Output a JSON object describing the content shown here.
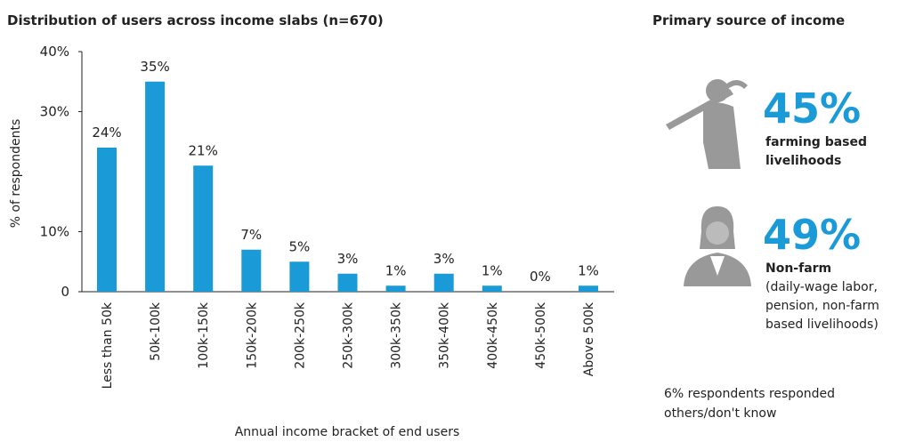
{
  "chart_data": {
    "type": "bar",
    "title": "Distribution of users across income slabs (n=670)",
    "x_label": "Annual income bracket of end users",
    "y_label": "% of respondents",
    "categories": [
      "Less than 50k",
      "50k-100k",
      "100k-150k",
      "150k-200k",
      "200k-250k",
      "250k-300k",
      "300k-350k",
      "350k-400k",
      "400k-450k",
      "450k-500k",
      "Above 500k"
    ],
    "values": [
      24,
      35,
      21,
      7,
      5,
      3,
      1,
      3,
      1,
      0,
      1
    ],
    "value_labels": [
      "24%",
      "35%",
      "21%",
      "7%",
      "5%",
      "3%",
      "1%",
      "3%",
      "1%",
      "0%",
      "1%"
    ],
    "color": "#1a9ad6",
    "ylim": [
      0,
      40
    ],
    "yticks": [
      {
        "value": 40,
        "label": "40%"
      },
      {
        "value": 30,
        "label": "30%"
      },
      {
        "value": 10,
        "label": "10%"
      },
      0
    ]
  },
  "sidebar": {
    "title": "Primary source of income",
    "stats": [
      {
        "value": "45%",
        "lines_bold": [
          "farming based",
          "livelihoods"
        ],
        "lines": []
      },
      {
        "value": "49%",
        "lines_bold": [
          "Non-farm"
        ],
        "lines": [
          "(daily-wage labor,",
          "pension, non-farm",
          "based livelihoods)"
        ]
      }
    ],
    "footnote": [
      "6% respondents responded",
      "others/don't know"
    ]
  }
}
